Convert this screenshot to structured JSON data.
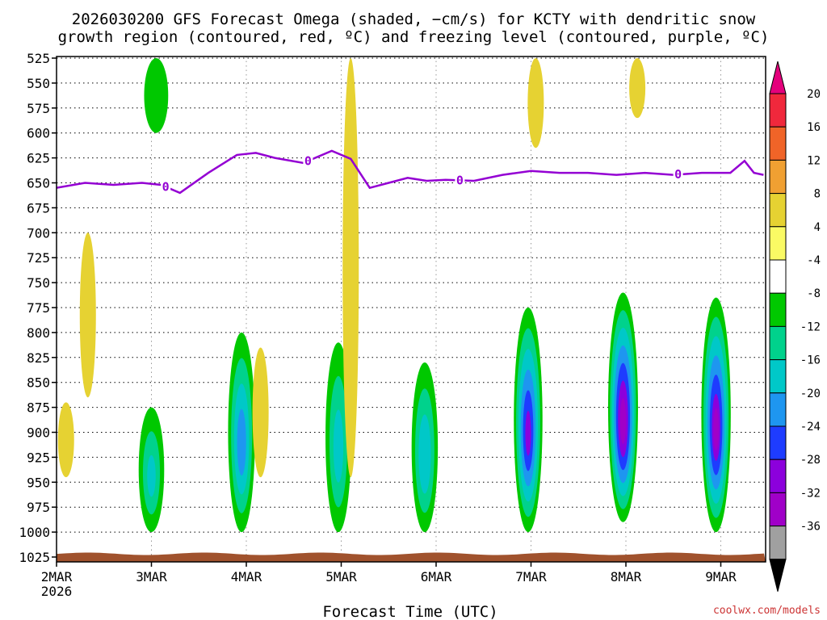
{
  "chart_data": {
    "type": "heatmap",
    "title_line1": "2026030200 GFS Forecast Omega (shaded, −cm/s) for KCTY with dendritic snow",
    "title_line2": "growth region (contoured, red, ºC) and freezing level (contoured, purple, ºC)",
    "xlabel": "Forecast Time (UTC)",
    "ylabel": "",
    "credit": "coolwx.com/models",
    "x_ticks": [
      "2MAR",
      "3MAR",
      "4MAR",
      "5MAR",
      "6MAR",
      "7MAR",
      "8MAR",
      "9MAR"
    ],
    "x_year": "2026",
    "x_range_days": [
      0,
      7.45
    ],
    "y_ticks": [
      "525",
      "550",
      "575",
      "600",
      "625",
      "650",
      "675",
      "700",
      "725",
      "750",
      "775",
      "800",
      "825",
      "850",
      "875",
      "900",
      "925",
      "950",
      "975",
      "1000",
      "1025"
    ],
    "y_range_hpa": [
      525,
      1035
    ],
    "colorbar": {
      "labels": [
        "20",
        "16",
        "12",
        "8",
        "4",
        "-4",
        "-8",
        "-12",
        "-16",
        "-20",
        "-24",
        "-28",
        "-32",
        "-36"
      ],
      "colors": [
        "#e4007c",
        "#f0283c",
        "#f06428",
        "#f0a032",
        "#e6d232",
        "#fafa64",
        "#ffffff",
        "#00c800",
        "#00d28c",
        "#00c8c8",
        "#1e96f0",
        "#1e3cff",
        "#8c00dc",
        "#a000c8",
        "#a0a0a0",
        "#000000"
      ]
    },
    "omega_series": [
      {
        "time_day": 0.1,
        "top_hpa": 870,
        "bottom_hpa": 945,
        "value": 6
      },
      {
        "time_day": 0.33,
        "top_hpa": 700,
        "bottom_hpa": 865,
        "value": 5
      },
      {
        "time_day": 1.0,
        "top_hpa": 875,
        "bottom_hpa": 1000,
        "value": -12
      },
      {
        "time_day": 1.05,
        "top_hpa": 525,
        "bottom_hpa": 600,
        "value": -6
      },
      {
        "time_day": 1.95,
        "top_hpa": 800,
        "bottom_hpa": 1000,
        "value": -18
      },
      {
        "time_day": 2.15,
        "top_hpa": 815,
        "bottom_hpa": 945,
        "value": 6
      },
      {
        "time_day": 2.97,
        "top_hpa": 810,
        "bottom_hpa": 1000,
        "value": -13
      },
      {
        "time_day": 3.1,
        "top_hpa": 525,
        "bottom_hpa": 945,
        "value": 6
      },
      {
        "time_day": 3.88,
        "top_hpa": 830,
        "bottom_hpa": 1000,
        "value": -15
      },
      {
        "time_day": 4.97,
        "top_hpa": 775,
        "bottom_hpa": 1000,
        "value": -25
      },
      {
        "time_day": 5.05,
        "top_hpa": 525,
        "bottom_hpa": 615,
        "value": 6
      },
      {
        "time_day": 5.97,
        "top_hpa": 760,
        "bottom_hpa": 990,
        "value": -30
      },
      {
        "time_day": 6.12,
        "top_hpa": 525,
        "bottom_hpa": 585,
        "value": 6
      },
      {
        "time_day": 6.95,
        "top_hpa": 765,
        "bottom_hpa": 1000,
        "value": -28
      }
    ],
    "freezing_level": {
      "label": "0",
      "times_day": [
        0.0,
        0.3,
        0.6,
        0.9,
        1.1,
        1.3,
        1.6,
        1.9,
        2.1,
        2.3,
        2.6,
        2.9,
        3.1,
        3.3,
        3.5,
        3.7,
        3.9,
        4.1,
        4.4,
        4.7,
        5.0,
        5.3,
        5.6,
        5.9,
        6.2,
        6.5,
        6.8,
        7.1,
        7.25,
        7.35,
        7.45
      ],
      "pressure_hpa": [
        655,
        650,
        652,
        650,
        652,
        660,
        640,
        622,
        620,
        625,
        630,
        618,
        626,
        655,
        650,
        645,
        648,
        647,
        648,
        642,
        638,
        640,
        640,
        642,
        640,
        642,
        640,
        640,
        628,
        640,
        642
      ]
    }
  }
}
